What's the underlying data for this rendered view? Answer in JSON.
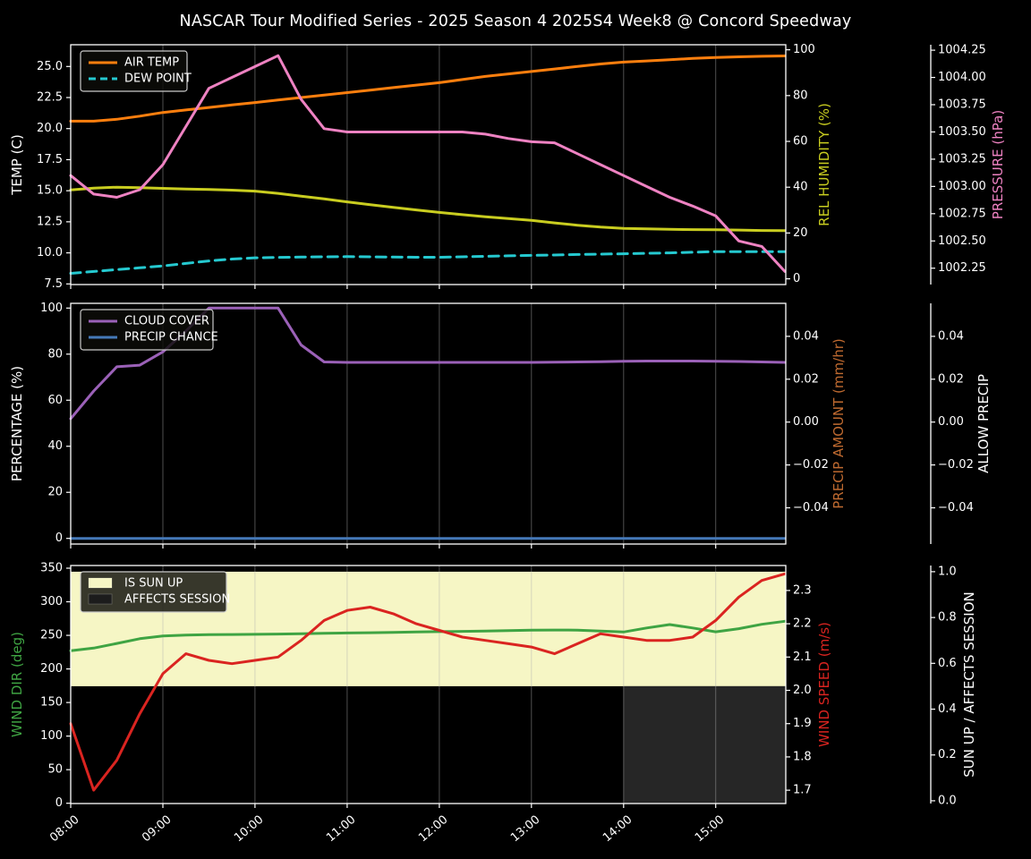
{
  "title": "NASCAR Tour Modified Series - 2025 Season 4 2025S4 Week8 @ Concord Speedway",
  "chart_data": {
    "type": "line",
    "x_axis": {
      "tick_labels": [
        "08:00",
        "09:00",
        "10:00",
        "11:00",
        "12:00",
        "13:00",
        "14:00",
        "15:00"
      ],
      "tick_hours": [
        8,
        9,
        10,
        11,
        12,
        13,
        14,
        15
      ],
      "range": [
        8.0,
        15.76
      ],
      "grid": "vertical-only"
    },
    "sample_hours": [
      8.0,
      8.25,
      8.5,
      8.75,
      9.0,
      9.25,
      9.5,
      9.75,
      10.0,
      10.25,
      10.5,
      10.75,
      11.0,
      11.25,
      11.5,
      11.75,
      12.0,
      12.25,
      12.5,
      12.75,
      13.0,
      13.25,
      13.5,
      13.75,
      14.0,
      14.25,
      14.5,
      14.75,
      15.0,
      15.25,
      15.5,
      15.75
    ],
    "charts": [
      {
        "name": "temperature-humidity-pressure",
        "left_axis": {
          "label": "TEMP (C)",
          "color": "#ffffff",
          "tick_values": [
            25.0,
            22.5,
            20.0,
            17.5,
            15.0,
            12.5,
            10.0,
            7.5
          ],
          "tick_labels": [
            "25.0",
            "22.5",
            "20.0",
            "17.5",
            "15.0",
            "12.5",
            "10.0",
            "7.5"
          ],
          "range": [
            7.45,
            26.75
          ]
        },
        "right_axes": [
          {
            "id": "hum",
            "label": "REL HUMIDITY (%)",
            "color": "#c9cd20",
            "tick_values": [
              100,
              80,
              60,
              40,
              20,
              0
            ],
            "tick_labels": [
              "100",
              "80",
              "60",
              "40",
              "20",
              "0"
            ],
            "range": [
              -2.5,
              102.2
            ],
            "spine": false
          },
          {
            "id": "press",
            "label": "PRESSURE (hPa)",
            "color": "#ee82c2",
            "tick_values": [
              1004.25,
              1004.0,
              1003.75,
              1003.5,
              1003.25,
              1003.0,
              1002.75,
              1002.5,
              1002.25
            ],
            "tick_labels": [
              "1004.25",
              "1004.00",
              "1003.75",
              "1003.50",
              "1003.25",
              "1003.00",
              "1002.75",
              "1002.50",
              "1002.25"
            ],
            "range": [
              1002.1,
              1004.3
            ],
            "spine": true
          }
        ],
        "legend": {
          "items": [
            {
              "label": "AIR TEMP",
              "color": "#ff7f0e",
              "style": "solid"
            },
            {
              "label": "DEW POINT",
              "color": "#25c9d0",
              "style": "dashed"
            }
          ]
        },
        "series": [
          {
            "name": "AIR TEMP",
            "axis": "left",
            "color": "#ff7f0e",
            "style": "solid",
            "values": [
              20.6,
              20.6,
              20.75,
              21.0,
              21.3,
              21.5,
              21.7,
              21.9,
              22.1,
              22.3,
              22.5,
              22.7,
              22.9,
              23.1,
              23.3,
              23.5,
              23.7,
              23.95,
              24.2,
              24.4,
              24.6,
              24.8,
              25.0,
              25.2,
              25.35,
              25.45,
              25.55,
              25.65,
              25.72,
              25.78,
              25.82,
              25.85
            ]
          },
          {
            "name": "DEW POINT",
            "axis": "left",
            "color": "#25c9d0",
            "style": "dashed",
            "values": [
              8.35,
              8.5,
              8.65,
              8.8,
              8.95,
              9.15,
              9.35,
              9.5,
              9.6,
              9.63,
              9.66,
              9.68,
              9.7,
              9.68,
              9.66,
              9.65,
              9.65,
              9.68,
              9.72,
              9.76,
              9.8,
              9.83,
              9.87,
              9.9,
              9.93,
              9.96,
              10.0,
              10.05,
              10.1,
              10.1,
              10.1,
              10.1
            ]
          },
          {
            "name": "REL HUMIDITY",
            "axis": "hum",
            "color": "#c9cd20",
            "style": "solid",
            "values": [
              38.8,
              39.6,
              40.0,
              39.8,
              39.5,
              39.2,
              39.0,
              38.7,
              38.3,
              37.3,
              36.1,
              34.9,
              33.6,
              32.4,
              31.2,
              30.1,
              29.0,
              28.0,
              27.1,
              26.3,
              25.5,
              24.4,
              23.4,
              22.6,
              22.0,
              21.8,
              21.6,
              21.5,
              21.4,
              21.3,
              21.1,
              21.0
            ]
          },
          {
            "name": "PRESSURE",
            "axis": "press",
            "color": "#ee82c2",
            "style": "solid",
            "values": [
              1003.1,
              1002.93,
              1002.9,
              1002.97,
              1003.2,
              1003.55,
              1003.9,
              1004.0,
              1004.1,
              1004.2,
              1003.8,
              1003.53,
              1003.5,
              1003.5,
              1003.5,
              1003.5,
              1003.5,
              1003.5,
              1003.48,
              1003.44,
              1003.41,
              1003.4,
              1003.3,
              1003.2,
              1003.1,
              1003.0,
              1002.9,
              1002.82,
              1002.73,
              1002.5,
              1002.45,
              1002.22
            ]
          }
        ]
      },
      {
        "name": "cloud-precip",
        "left_axis": {
          "label": "PERCENTAGE (%)",
          "color": "#ffffff",
          "tick_values": [
            100,
            80,
            60,
            40,
            20,
            0
          ],
          "tick_labels": [
            "100",
            "80",
            "60",
            "40",
            "20",
            "0"
          ],
          "range": [
            -2.45,
            102.06
          ]
        },
        "right_axes": [
          {
            "id": "pamt",
            "label": "PRECIP AMOUNT (mm/hr)",
            "color": "#bf6a30",
            "tick_values": [
              0.04,
              0.02,
              0.0,
              -0.02,
              -0.04
            ],
            "tick_labels": [
              "0.04",
              "0.02",
              "0.00",
              "−0.02",
              "−0.04"
            ],
            "range": [
              -0.0569,
              0.0554
            ],
            "spine": false
          },
          {
            "id": "allow",
            "label": "ALLOW PRECIP",
            "color": "#ffffff",
            "tick_values": [
              0.04,
              0.02,
              0.0,
              -0.02,
              -0.04
            ],
            "tick_labels": [
              "0.04",
              "0.02",
              "0.00",
              "−0.02",
              "−0.04"
            ],
            "range": [
              -0.0569,
              0.0554
            ],
            "spine": true
          }
        ],
        "legend": {
          "items": [
            {
              "label": "CLOUD COVER",
              "color": "#9b61b8",
              "style": "solid"
            },
            {
              "label": "PRECIP CHANCE",
              "color": "#4579b8",
              "style": "solid"
            }
          ]
        },
        "series": [
          {
            "name": "CLOUD COVER",
            "axis": "left",
            "color": "#9b61b8",
            "style": "solid",
            "values": [
              52,
              64,
              74.5,
              75.2,
              81,
              90,
              100,
              100,
              100,
              100,
              84,
              76.6,
              76.4,
              76.4,
              76.4,
              76.4,
              76.4,
              76.4,
              76.4,
              76.4,
              76.4,
              76.5,
              76.6,
              76.7,
              76.9,
              77.0,
              77.0,
              77.0,
              76.9,
              76.8,
              76.6,
              76.4
            ]
          },
          {
            "name": "PRECIP CHANCE",
            "axis": "left",
            "color": "#4579b8",
            "style": "solid",
            "values": [
              0,
              0,
              0,
              0,
              0,
              0,
              0,
              0,
              0,
              0,
              0,
              0,
              0,
              0,
              0,
              0,
              0,
              0,
              0,
              0,
              0,
              0,
              0,
              0,
              0,
              0,
              0,
              0,
              0,
              0,
              0,
              0
            ]
          }
        ]
      },
      {
        "name": "wind-sun",
        "left_axis": {
          "label": "WIND DIR (deg)",
          "color": "#3fa443",
          "tick_values": [
            350,
            300,
            250,
            200,
            150,
            100,
            50,
            0
          ],
          "tick_labels": [
            "350",
            "300",
            "250",
            "200",
            "150",
            "100",
            "50",
            "0"
          ],
          "range": [
            -0.4,
            354.0
          ]
        },
        "right_axes": [
          {
            "id": "speed",
            "label": "WIND SPEED (m/s)",
            "color": "#da2420",
            "tick_values": [
              2.3,
              2.2,
              2.1,
              2.0,
              1.9,
              1.8,
              1.7
            ],
            "tick_labels": [
              "2.3",
              "2.2",
              "2.1",
              "2.0",
              "1.9",
              "1.8",
              "1.7"
            ],
            "range": [
              1.66,
              2.375
            ],
            "spine": false
          },
          {
            "id": "sun",
            "label": "SUN UP / AFFECTS SESSION",
            "color": "#ffffff",
            "tick_values": [
              1.0,
              0.8,
              0.6,
              0.4,
              0.2,
              0.0
            ],
            "tick_labels": [
              "1.0",
              "0.8",
              "0.6",
              "0.4",
              "0.2",
              "0.0"
            ],
            "range": [
              -0.012,
              1.027
            ],
            "spine": true
          }
        ],
        "legend": {
          "items": [
            {
              "label": "IS SUN UP",
              "color": "#f6f6c5",
              "style": "patch"
            },
            {
              "label": "AFFECTS SESSION",
              "color": "#1c1c1c",
              "style": "patch"
            }
          ]
        },
        "fills": [
          {
            "label": "IS SUN UP",
            "color": "#f6f6c5",
            "axis": "sun",
            "x_range": [
              8.0,
              15.76
            ],
            "value_range": [
              0.5,
              1.0
            ]
          },
          {
            "label": "AFFECTS SESSION",
            "color": "#262626",
            "axis": "sun",
            "x_range": [
              14.0,
              15.76
            ],
            "value_range": [
              -0.012,
              0.5
            ]
          }
        ],
        "series": [
          {
            "name": "WIND DIR",
            "axis": "left",
            "color": "#3fa443",
            "style": "solid",
            "values": [
              227,
              231,
              238,
              245,
              249,
              250.5,
              251,
              251.3,
              251.5,
              252,
              252.5,
              253,
              253.5,
              254,
              254.5,
              255,
              255.5,
              256,
              256.5,
              257.2,
              257.8,
              258,
              257.8,
              256.5,
              255,
              261,
              266,
              261,
              255.3,
              260,
              266.5,
              271
            ]
          },
          {
            "name": "WIND SPEED",
            "axis": "speed",
            "color": "#da2420",
            "style": "solid",
            "values": [
              1.9,
              1.7,
              1.79,
              1.93,
              2.05,
              2.11,
              2.09,
              2.08,
              2.09,
              2.1,
              2.15,
              2.21,
              2.24,
              2.25,
              2.23,
              2.2,
              2.18,
              2.16,
              2.15,
              2.14,
              2.13,
              2.11,
              2.14,
              2.17,
              2.16,
              2.15,
              2.15,
              2.16,
              2.21,
              2.28,
              2.33,
              2.35
            ]
          }
        ]
      }
    ]
  }
}
